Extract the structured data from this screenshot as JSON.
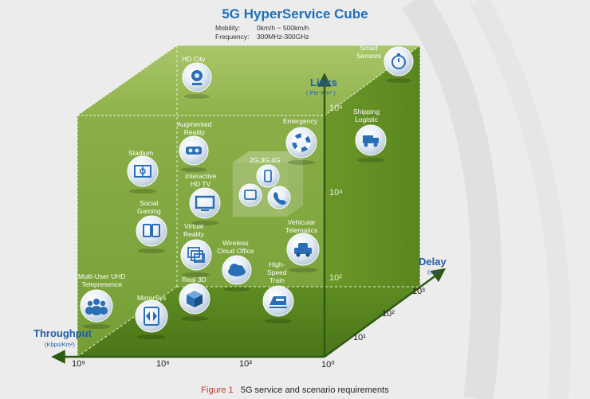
{
  "title": "5G HyperService Cube",
  "specs": [
    {
      "label": "Mobility:",
      "value": "0km/h ~ 500km/h"
    },
    {
      "label": "Frequency:",
      "value": "300MHz-300GHz"
    }
  ],
  "axes": {
    "links": {
      "title": "Links",
      "unit": "( Per Km² )",
      "ticks": [
        "10⁶",
        "10⁴",
        "10²"
      ]
    },
    "delay": {
      "title": "Delay",
      "unit": "(ms)",
      "ticks": [
        "10³",
        "10²",
        "10¹",
        "10⁰"
      ]
    },
    "throughput": {
      "title": "Throughput",
      "unit": "(Kbps/Km²)",
      "ticks": [
        "10⁹",
        "10⁶",
        "10³",
        "10⁰"
      ]
    }
  },
  "services": [
    {
      "key": "hd_city",
      "label": "HD City",
      "icon": "webcam-icon"
    },
    {
      "key": "smart_sensors",
      "label": "Smart\nSensors",
      "icon": "timer-icon"
    },
    {
      "key": "shipping_logistic",
      "label": "Shipping\nLogistic",
      "icon": "truck-icon"
    },
    {
      "key": "augmented_reality",
      "label": "Augmented\nReality",
      "icon": "ar-glasses-icon"
    },
    {
      "key": "emergency",
      "label": "Emergency",
      "icon": "lifebuoy-icon"
    },
    {
      "key": "stadium",
      "label": "Stadium",
      "icon": "stadium-icon"
    },
    {
      "key": "interactive_hd_tv",
      "label": "Interactive\nHD TV",
      "icon": "tv-icon"
    },
    {
      "key": "legacy",
      "label": "2G,3G,4G",
      "icon": "mobile-devices-icon"
    },
    {
      "key": "social_gaming",
      "label": "Social\nGaming",
      "icon": "tablets-icon"
    },
    {
      "key": "vehicular_telematics",
      "label": "Vehicular\nTelematics",
      "icon": "car-icon"
    },
    {
      "key": "virtual_reality",
      "label": "Virtual\nReality",
      "icon": "vr-windows-icon"
    },
    {
      "key": "wireless_cloud_office",
      "label": "Wireless\nCloud Office",
      "icon": "cloud-icon"
    },
    {
      "key": "high_speed_train",
      "label": "High-\nSpeed\nTrain",
      "icon": "train-icon"
    },
    {
      "key": "multi_user_uhd",
      "label": "Multi-User UHD\nTelepresence",
      "icon": "people-icon"
    },
    {
      "key": "real_3d",
      "label": "Real 3D",
      "icon": "cube-icon"
    },
    {
      "key": "mirrorsys",
      "label": "MirrorSys",
      "icon": "mirror-icon"
    }
  ],
  "caption": {
    "figure": "Figure 1",
    "text": "5G service and scenario requirements"
  },
  "colors": {
    "cube_front": "#7fa63a",
    "cube_dark": "#4f7d1e",
    "title": "#1f6fb8",
    "axis": "#2e5a12",
    "axis_label": "#1f5da8",
    "figure_label": "#c0392b"
  }
}
